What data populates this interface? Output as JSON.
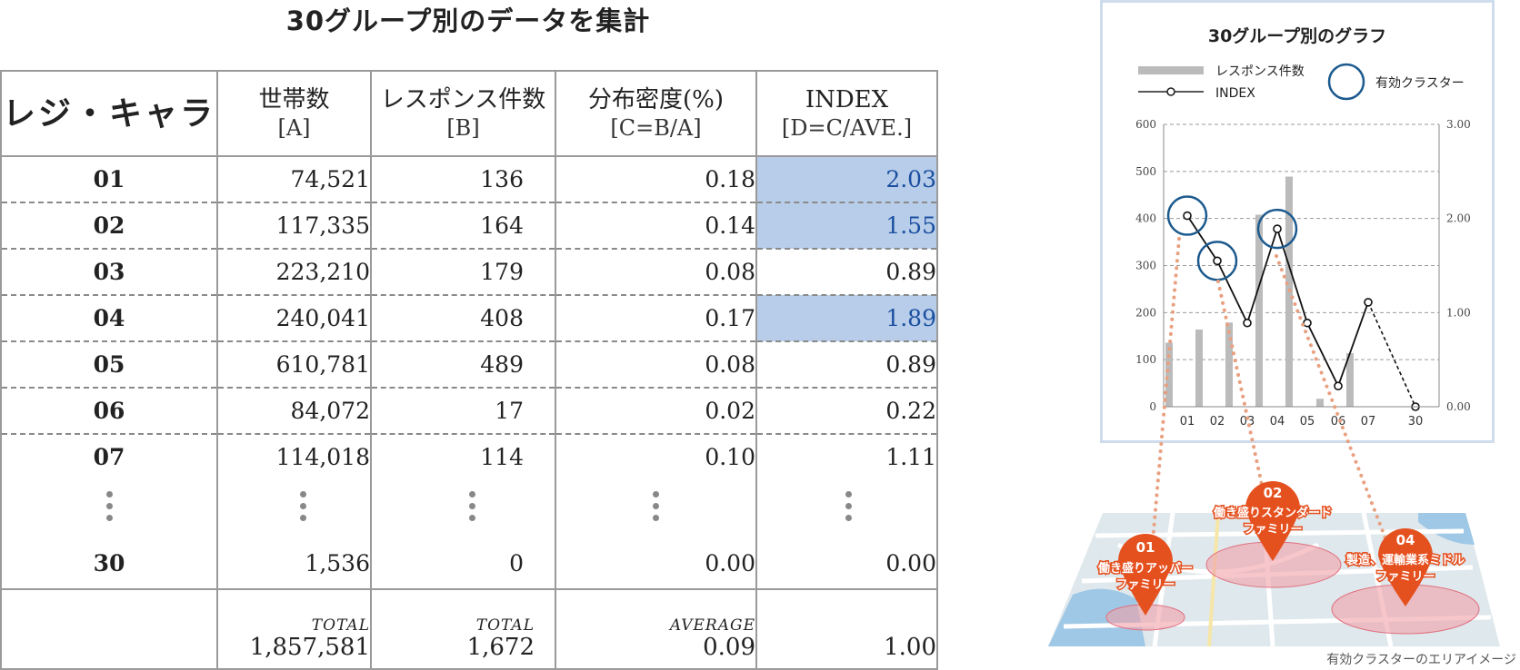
{
  "title": "30グループ別のデータを集計",
  "logo": "レジ・キャラ",
  "headers": [
    {
      "main": "世帯数",
      "sub": "[A]"
    },
    {
      "main": "レスポンス件数",
      "sub": "[B]"
    },
    {
      "main": "分布密度(%)",
      "sub": "[C=B/A]"
    },
    {
      "main": "INDEX",
      "sub": "[D=C/AVE.]"
    }
  ],
  "rows": [
    {
      "group": "01",
      "households": "74,521",
      "responses": "136",
      "density": "0.18",
      "index": "2.03",
      "highlight": true
    },
    {
      "group": "02",
      "households": "117,335",
      "responses": "164",
      "density": "0.14",
      "index": "1.55",
      "highlight": true
    },
    {
      "group": "03",
      "households": "223,210",
      "responses": "179",
      "density": "0.08",
      "index": "0.89",
      "highlight": false
    },
    {
      "group": "04",
      "households": "240,041",
      "responses": "408",
      "density": "0.17",
      "index": "1.89",
      "highlight": true
    },
    {
      "group": "05",
      "households": "610,781",
      "responses": "489",
      "density": "0.08",
      "index": "0.89",
      "highlight": false
    },
    {
      "group": "06",
      "households": "84,072",
      "responses": "17",
      "density": "0.02",
      "index": "0.22",
      "highlight": false
    },
    {
      "group": "07",
      "households": "114,018",
      "responses": "114",
      "density": "0.10",
      "index": "1.11",
      "highlight": false
    }
  ],
  "last_row": {
    "group": "30",
    "households": "1,536",
    "responses": "0",
    "density": "0.00",
    "index": "0.00"
  },
  "totals": {
    "households_label": "TOTAL",
    "households": "1,857,581",
    "responses_label": "TOTAL",
    "responses": "1,672",
    "density_label": "AVERAGE",
    "density": "0.09",
    "index": "1.00"
  },
  "colors": {
    "highlight": "#b8cde9",
    "highlight_text": "#1a4fa0",
    "bar": "#bbbbbb",
    "circle": "#1c5a8e",
    "pin": "#e5501f",
    "dotted": "#e8a080"
  },
  "chart_data": {
    "type": "bar",
    "title": "30グループ別のグラフ",
    "categories": [
      "01",
      "02",
      "03",
      "04",
      "05",
      "06",
      "07",
      "30"
    ],
    "series": [
      {
        "name": "レスポンス件数",
        "type": "bar",
        "axis": "left",
        "values": [
          136,
          164,
          179,
          408,
          489,
          17,
          114,
          0
        ]
      },
      {
        "name": "INDEX",
        "type": "line",
        "axis": "right",
        "values": [
          2.03,
          1.55,
          0.89,
          1.89,
          0.89,
          0.22,
          1.11,
          0.0
        ]
      }
    ],
    "y_left": {
      "ylim": [
        0,
        600
      ],
      "ticks": [
        "0",
        "100",
        "200",
        "300",
        "400",
        "500",
        "600"
      ]
    },
    "y_right": {
      "ylim": [
        0,
        3
      ],
      "ticks": [
        "0.00",
        "1.00",
        "2.00",
        "3.00"
      ]
    },
    "legend": {
      "bar": "レスポンス件数",
      "line": "INDEX",
      "circle": "有効クラスター",
      "placement": "top"
    },
    "effective_clusters": [
      "01",
      "02",
      "04"
    ],
    "grid": true
  },
  "map": {
    "pins": [
      {
        "num": "01",
        "label": [
          "働き盛りアッパー",
          "ファミリー"
        ]
      },
      {
        "num": "02",
        "label": [
          "働き盛りスタンダード",
          "ファミリー"
        ]
      },
      {
        "num": "04",
        "label": [
          "製造、運輸業系ミドル",
          "ファミリー"
        ]
      }
    ],
    "caption": "有効クラスターのエリアイメージ"
  }
}
